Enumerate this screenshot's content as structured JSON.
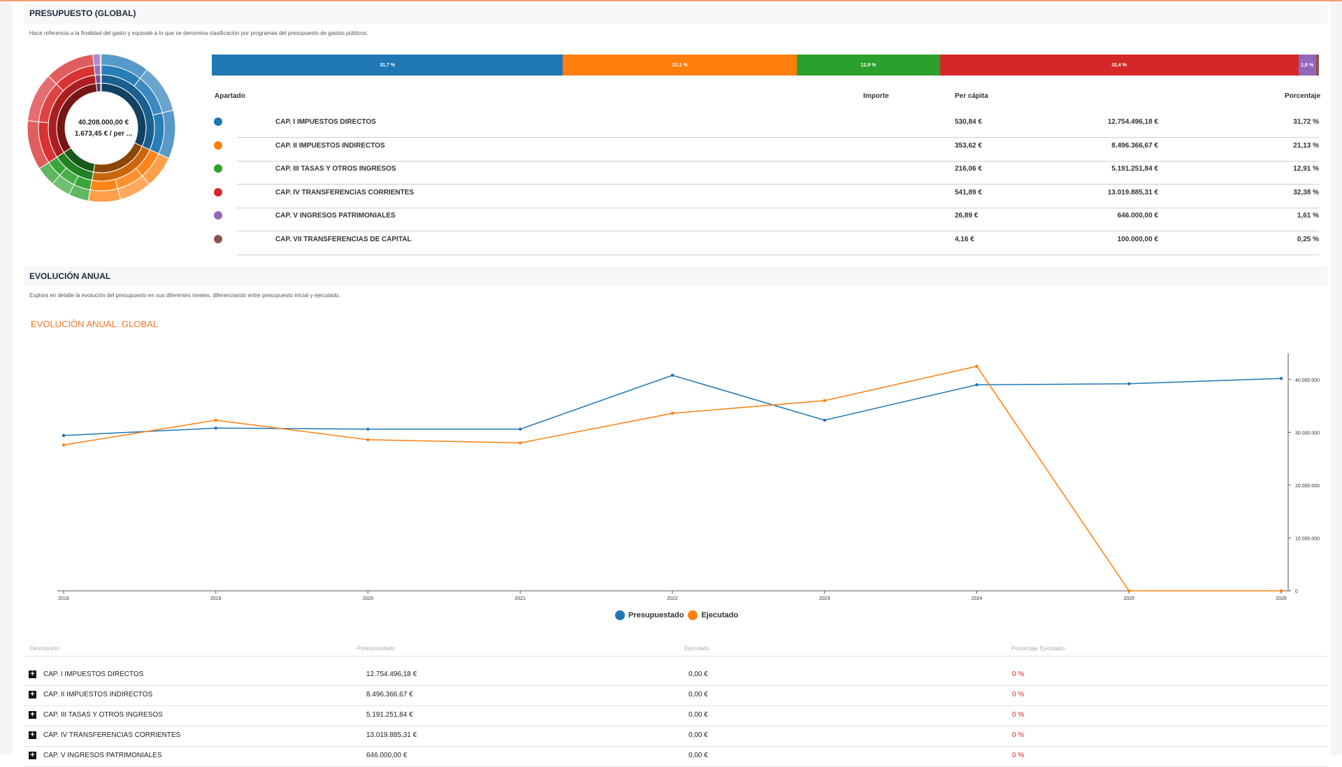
{
  "budget_section": {
    "title": "PRESUPUESTO (GLOBAL)",
    "description": "Hace referencia a la finalidad del gasto y equivale a lo que se denomina clasificación por programas del presupuesto de gastos públicos."
  },
  "sunburst": {
    "total": "40.208.000,00 €",
    "per_capita": "1.673,45 € / per ..."
  },
  "stacked_bar": [
    {
      "label": "31,7 %",
      "share": 31.72,
      "color": "#1f77b4"
    },
    {
      "label": "21,1 %",
      "share": 21.13,
      "color": "#ff7f0e"
    },
    {
      "label": "12,9 %",
      "share": 12.91,
      "color": "#2ca02c"
    },
    {
      "label": "32,4 %",
      "share": 32.38,
      "color": "#d62728"
    },
    {
      "label": "1,6 %",
      "share": 1.61,
      "color": "#9467bd"
    },
    {
      "label": "",
      "share": 0.25,
      "color": "#8c564b"
    }
  ],
  "table": {
    "headers": {
      "apartado": "Apartado",
      "importe": "Importe",
      "per_capita": "Per cápita",
      "porcentaje": "Porcentaje"
    },
    "rows": [
      {
        "color": "#1f77b4",
        "name": "CAP. I IMPUESTOS DIRECTOS",
        "importe": "12.754.496,18 €",
        "per_capita": "530,84 €",
        "porcentaje": "31,72 %"
      },
      {
        "color": "#ff7f0e",
        "name": "CAP. II IMPUESTOS INDIRECTOS",
        "importe": "8.496.366,67 €",
        "per_capita": "353,62 €",
        "porcentaje": "21,13 %"
      },
      {
        "color": "#2ca02c",
        "name": "CAP. III TASAS Y OTROS INGRESOS",
        "importe": "5.191.251,84 €",
        "per_capita": "216,06 €",
        "porcentaje": "12,91 %"
      },
      {
        "color": "#d62728",
        "name": "CAP. IV TRANSFERENCIAS CORRIENTES",
        "importe": "13.019.885,31 €",
        "per_capita": "541,89 €",
        "porcentaje": "32,38 %"
      },
      {
        "color": "#9467bd",
        "name": "CAP. V INGRESOS PATRIMONIALES",
        "importe": "646.000,00 €",
        "per_capita": "26,89 €",
        "porcentaje": "1,61 %"
      },
      {
        "color": "#8c564b",
        "name": "CAP. VII TRANSFERENCIAS DE CAPITAL",
        "importe": "100.000,00 €",
        "per_capita": "4,16 €",
        "porcentaje": "0,25 %"
      }
    ]
  },
  "evolution_section": {
    "title": "EVOLUCIÓN ANUAL",
    "description": "Explora en detalle la evolución del presupuesto en sus diferentes niveles, diferenciando entre presupuesto inicial y ejecutado.",
    "chart_title": "EVOLUCIÓN ANUAL: GLOBAL"
  },
  "chart_data": {
    "type": "line",
    "title": "EVOLUCIÓN ANUAL: GLOBAL",
    "x": [
      "2018",
      "2019",
      "2020",
      "2021",
      "2022",
      "2023",
      "2024",
      "2025",
      "2026"
    ],
    "series": [
      {
        "name": "Presupuestado",
        "color": "#1f77b4",
        "values": [
          29400000,
          30800000,
          30600000,
          30600000,
          40800000,
          32300000,
          39000000,
          39200000,
          40200000
        ]
      },
      {
        "name": "Ejecutado",
        "color": "#ff7f0e",
        "values": [
          27600000,
          32300000,
          28600000,
          28000000,
          33600000,
          36000000,
          42500000,
          0,
          0
        ]
      }
    ],
    "yticks": [
      {
        "value": 0,
        "label": "0"
      },
      {
        "value": 10000000,
        "label": "10.000.000"
      },
      {
        "value": 20000000,
        "label": "20.000.000"
      },
      {
        "value": 30000000,
        "label": "30.000.000"
      },
      {
        "value": 40000000,
        "label": "40.000.000"
      }
    ],
    "ylim": [
      0,
      45000000
    ],
    "legend": "bottom"
  },
  "legend": {
    "presupuestado": "Presupuestado",
    "ejecutado": "Ejecutado",
    "presupuestado_color": "#1f77b4",
    "ejecutado_color": "#ff7f0e"
  },
  "bottom_table": {
    "headers": {
      "descripcion": "Descripción",
      "presupuestado": "Presupuestado",
      "ejecutado": "Ejecutado",
      "porcentaje": "Porcentaje Ejecutado"
    },
    "rows": [
      {
        "descripcion": "CAP. I IMPUESTOS DIRECTOS",
        "presupuestado": "12.754.496,18 €",
        "ejecutado": "0,00 €",
        "porcentaje": "0 %"
      },
      {
        "descripcion": "CAP. II IMPUESTOS INDIRECTOS",
        "presupuestado": "8.496.366,67 €",
        "ejecutado": "0,00 €",
        "porcentaje": "0 %"
      },
      {
        "descripcion": "CAP. III TASAS Y OTROS INGRESOS",
        "presupuestado": "5.191.251,84 €",
        "ejecutado": "0,00 €",
        "porcentaje": "0 %"
      },
      {
        "descripcion": "CAP. IV TRANSFERENCIAS CORRIENTES",
        "presupuestado": "13.019.885,31 €",
        "ejecutado": "0,00 €",
        "porcentaje": "0 %"
      },
      {
        "descripcion": "CAP. V INGRESOS PATRIMONIALES",
        "presupuestado": "646.000,00 €",
        "ejecutado": "0,00 €",
        "porcentaje": "0 %"
      }
    ]
  }
}
